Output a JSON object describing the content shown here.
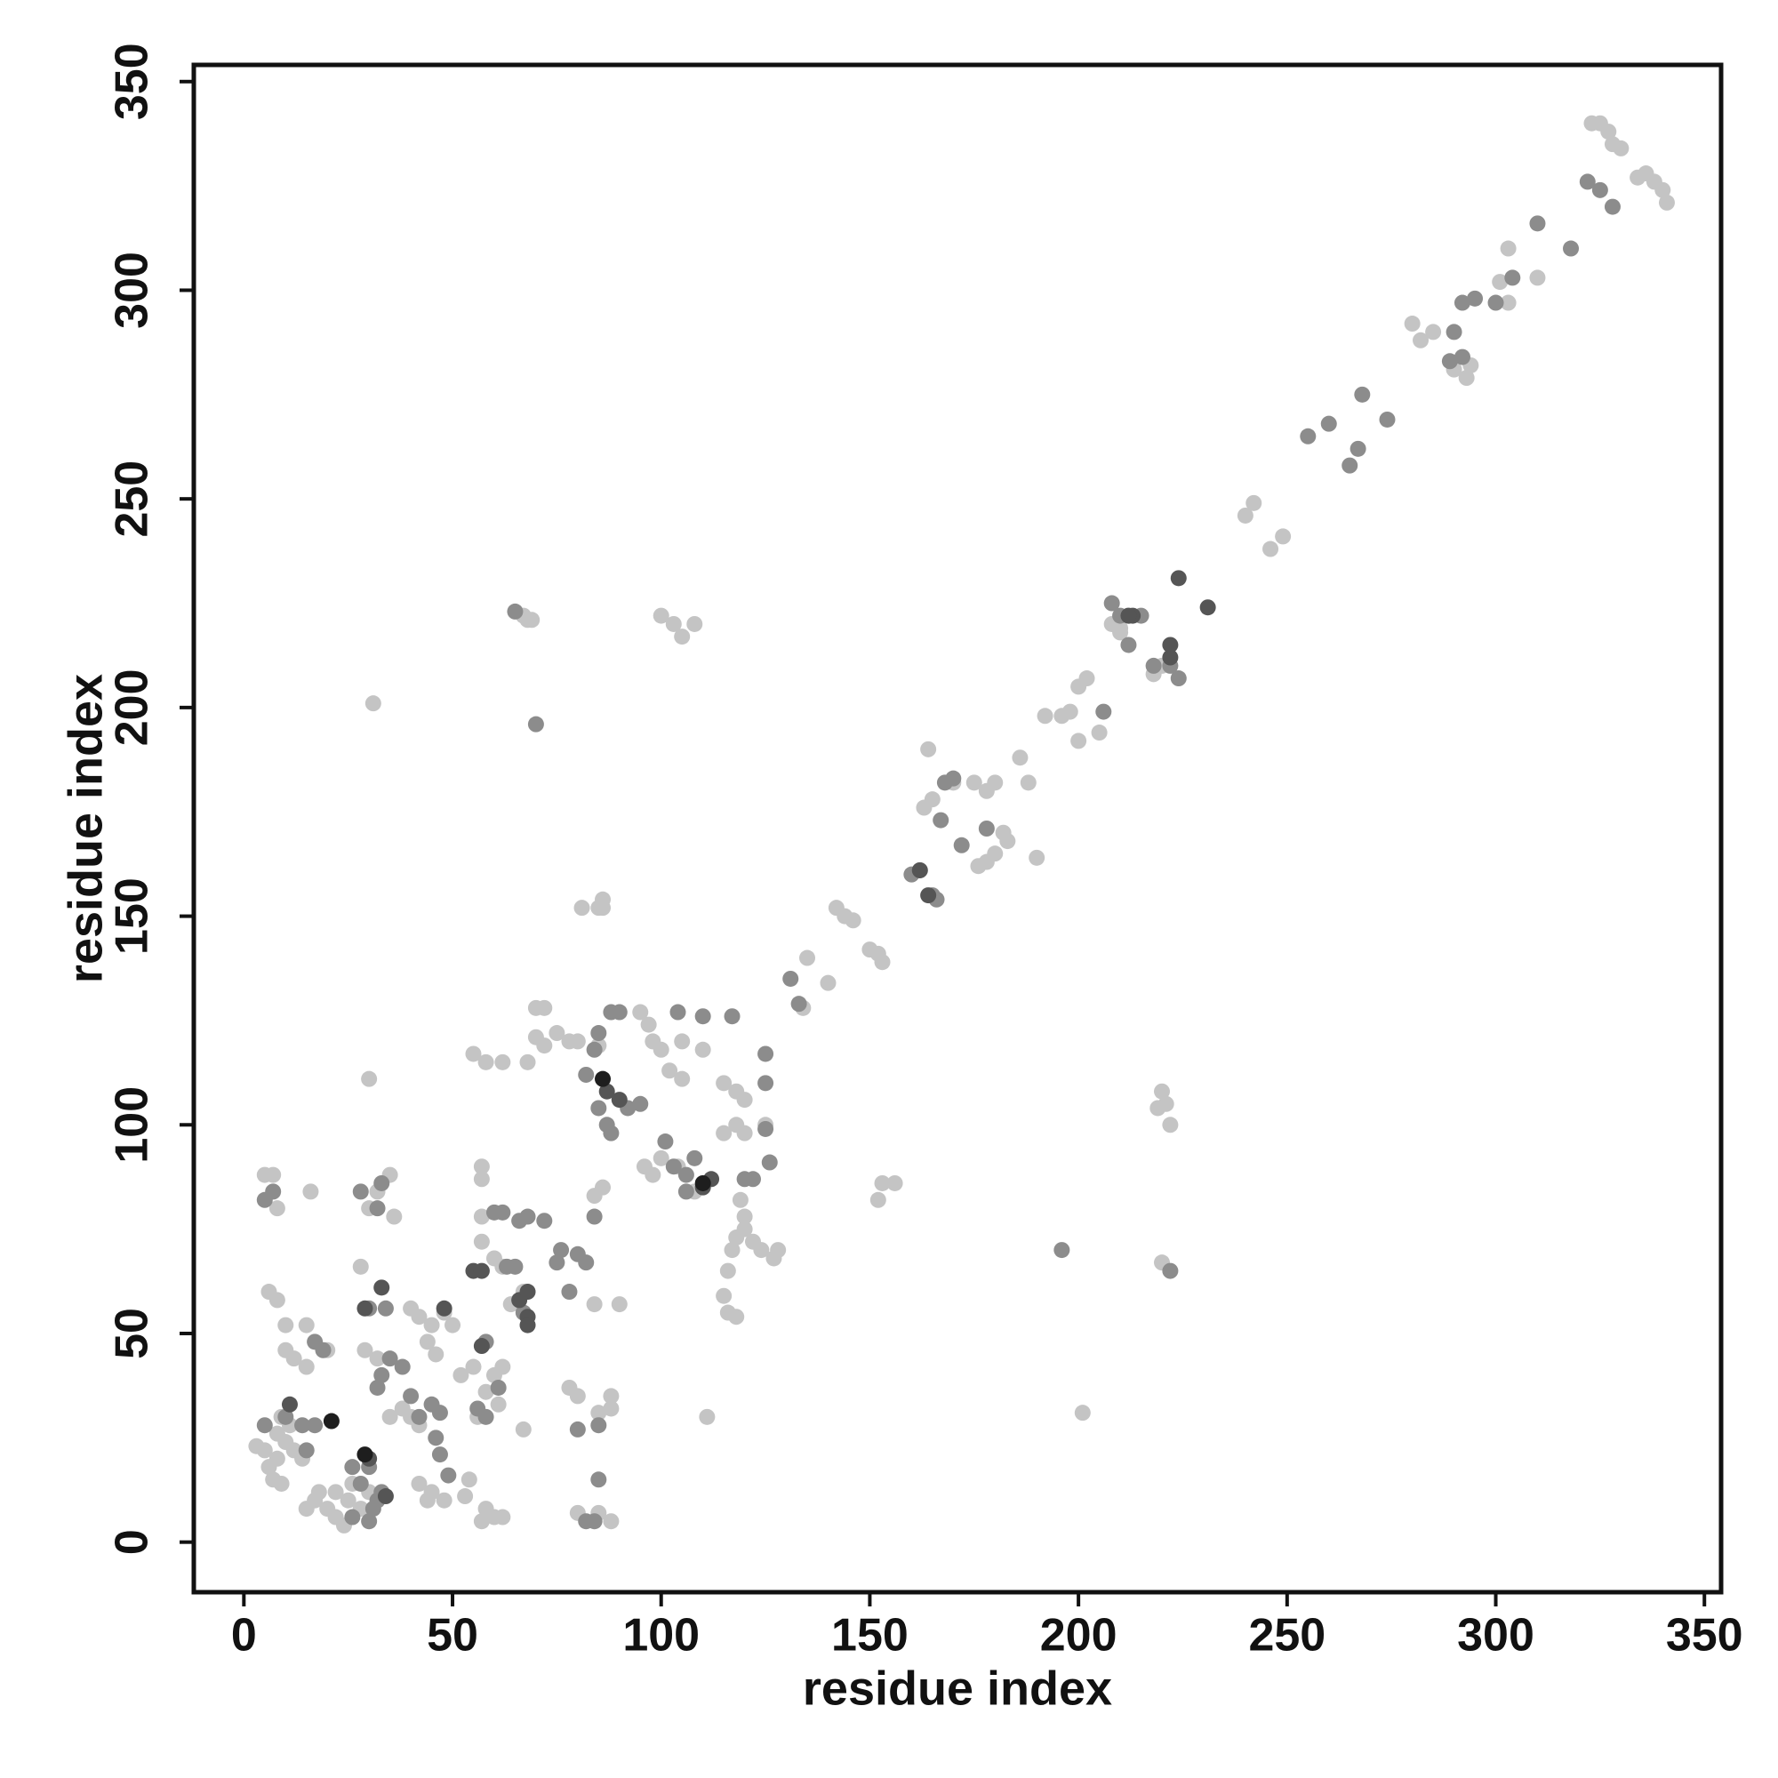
{
  "chart_data": {
    "type": "scatter",
    "xlabel": "residue index",
    "ylabel": "residue index",
    "xlim": [
      -12,
      354
    ],
    "ylim": [
      -12,
      354
    ],
    "xticks": [
      0,
      50,
      100,
      150,
      200,
      250,
      300,
      350
    ],
    "yticks": [
      0,
      50,
      100,
      150,
      200,
      250,
      300,
      350
    ],
    "grid": false,
    "series": [
      {
        "color": "#c4c4c4",
        "x": [
          323,
          325,
          327,
          328,
          330,
          336,
          338,
          340,
          341,
          334,
          280,
          282,
          285,
          290,
          293,
          294,
          301,
          303,
          310,
          303,
          240,
          242,
          246,
          249,
          200,
          202,
          198,
          196,
          200,
          205,
          192,
          208,
          210,
          218,
          220,
          212,
          210,
          220,
          219,
          222,
          221,
          163,
          165,
          170,
          175,
          178,
          180,
          176,
          178,
          180,
          182,
          183,
          186,
          190,
          188,
          164,
          142,
          144,
          146,
          150,
          152,
          153,
          135,
          140,
          134,
          152,
          153,
          156,
          201,
          220,
          67,
          68,
          69,
          100,
          103,
          105,
          108,
          31,
          85,
          86,
          86,
          70,
          72,
          70,
          72,
          75,
          78,
          80,
          85,
          68,
          55,
          58,
          62,
          30,
          95,
          97,
          98,
          100,
          102,
          105,
          105,
          110,
          115,
          118,
          120,
          118,
          120,
          125,
          115,
          117,
          118,
          120,
          122,
          124,
          128,
          127,
          116,
          115,
          116,
          118,
          119,
          120,
          96,
          98,
          100,
          104,
          108,
          84,
          86,
          78,
          80,
          85,
          88,
          88,
          84,
          90,
          80,
          85,
          88,
          81,
          57,
          57,
          57,
          57,
          60,
          62,
          67,
          64,
          67,
          40,
          42,
          45,
          48,
          50,
          44,
          46,
          52,
          55,
          58,
          60,
          62,
          35,
          38,
          40,
          42,
          42,
          45,
          48,
          44,
          54,
          53,
          58,
          60,
          62,
          57,
          28,
          30,
          32,
          35,
          36,
          29,
          32,
          5,
          7,
          8,
          6,
          8,
          10,
          15,
          10,
          12,
          15,
          20,
          16,
          3,
          5,
          6,
          7,
          9,
          8,
          10,
          12,
          14,
          8,
          9,
          11,
          15,
          17,
          20,
          22,
          24,
          25,
          28,
          26,
          30,
          22,
          18,
          111,
          61,
          56
        ],
        "values": [
          340,
          340,
          338,
          335,
          334,
          328,
          326,
          324,
          321,
          327,
          292,
          288,
          290,
          281,
          279,
          282,
          302,
          310,
          303,
          297,
          246,
          249,
          238,
          241,
          205,
          207,
          199,
          198,
          192,
          194,
          198,
          220,
          218,
          208,
          210,
          222,
          219,
          108,
          104,
          100,
          105,
          176,
          178,
          182,
          182,
          180,
          182,
          162,
          163,
          165,
          170,
          168,
          188,
          164,
          182,
          190,
          152,
          150,
          149,
          142,
          141,
          139,
          140,
          134,
          128,
          82,
          86,
          86,
          31,
          67,
          222,
          221,
          221,
          222,
          220,
          217,
          220,
          201,
          152,
          154,
          152,
          128,
          128,
          121,
          119,
          122,
          120,
          120,
          119,
          115,
          117,
          115,
          115,
          111,
          127,
          124,
          120,
          118,
          113,
          111,
          120,
          118,
          110,
          108,
          106,
          100,
          98,
          100,
          98,
          70,
          73,
          75,
          72,
          70,
          70,
          68,
          65,
          59,
          55,
          54,
          82,
          78,
          90,
          88,
          92,
          90,
          84,
          83,
          85,
          37,
          35,
          31,
          35,
          32,
          57,
          57,
          7,
          7,
          5,
          152,
          90,
          87,
          78,
          72,
          68,
          66,
          27,
          57,
          60,
          56,
          54,
          52,
          55,
          52,
          48,
          45,
          40,
          42,
          36,
          40,
          42,
          30,
          32,
          30,
          28,
          14,
          12,
          10,
          10,
          15,
          11,
          8,
          6,
          6,
          5,
          66,
          80,
          84,
          88,
          78,
          46,
          44,
          88,
          88,
          80,
          60,
          58,
          52,
          52,
          46,
          44,
          42,
          46,
          84,
          23,
          22,
          18,
          15,
          14,
          20,
          24,
          22,
          20,
          26,
          30,
          28,
          8,
          10,
          8,
          6,
          4,
          10,
          8,
          14,
          12,
          12,
          12,
          30,
          33,
          30
        ]
      },
      {
        "color": "#8c8c8c",
        "x": [
          322,
          328,
          325,
          310,
          318,
          290,
          292,
          295,
          300,
          304,
          289,
          292,
          255,
          260,
          265,
          267,
          268,
          274,
          206,
          210,
          212,
          215,
          218,
          222,
          224,
          208,
          160,
          162,
          165,
          166,
          167,
          168,
          170,
          172,
          178,
          131,
          133,
          196,
          222,
          70,
          65,
          88,
          85,
          84,
          90,
          104,
          110,
          117,
          125,
          125,
          125,
          126,
          122,
          120,
          82,
          85,
          87,
          88,
          92,
          95,
          101,
          103,
          106,
          106,
          108,
          78,
          75,
          76,
          80,
          82,
          72,
          68,
          66,
          84,
          85,
          85,
          82,
          84,
          80,
          63,
          65,
          60,
          62,
          67,
          58,
          56,
          61,
          58,
          45,
          47,
          46,
          47,
          49,
          40,
          42,
          30,
          34,
          33,
          28,
          32,
          33,
          32,
          35,
          38,
          5,
          7,
          14,
          15,
          17,
          10,
          5,
          19,
          17,
          26,
          28,
          30,
          31,
          30,
          32,
          26,
          33
        ],
        "values": [
          326,
          320,
          324,
          316,
          310,
          290,
          297,
          298,
          297,
          303,
          283,
          284,
          265,
          268,
          258,
          262,
          275,
          269,
          199,
          222,
          215,
          222,
          210,
          210,
          207,
          225,
          160,
          161,
          155,
          154,
          173,
          182,
          183,
          167,
          171,
          135,
          129,
          70,
          65,
          196,
          223,
          127,
          122,
          118,
          127,
          127,
          126,
          126,
          117,
          110,
          99,
          91,
          87,
          87,
          112,
          104,
          100,
          98,
          104,
          105,
          96,
          90,
          88,
          84,
          92,
          60,
          67,
          70,
          69,
          67,
          77,
          78,
          77,
          78,
          28,
          15,
          5,
          5,
          27,
          66,
          66,
          79,
          79,
          55,
          30,
          32,
          37,
          48,
          33,
          31,
          25,
          21,
          16,
          35,
          30,
          56,
          56,
          86,
          84,
          80,
          40,
          37,
          44,
          42,
          82,
          84,
          28,
          22,
          28,
          30,
          28,
          46,
          48,
          18,
          14,
          18,
          8,
          5,
          10,
          6,
          12
        ]
      },
      {
        "color": "#555555",
        "x": [
          224,
          231,
          213,
          222,
          222,
          212,
          164,
          162,
          87,
          90,
          112,
          110,
          66,
          68,
          68,
          68,
          55,
          57,
          34,
          30,
          11,
          29,
          33,
          48,
          57
        ],
        "values": [
          231,
          224,
          222,
          212,
          215,
          222,
          155,
          161,
          108,
          106,
          87,
          85,
          58,
          60,
          54,
          52,
          65,
          65,
          11,
          20,
          33,
          56,
          61,
          56,
          47
        ]
      },
      {
        "color": "#1e1e1e",
        "x": [
          21,
          29,
          86,
          110
        ],
        "values": [
          29,
          21,
          111,
          86
        ]
      }
    ]
  }
}
